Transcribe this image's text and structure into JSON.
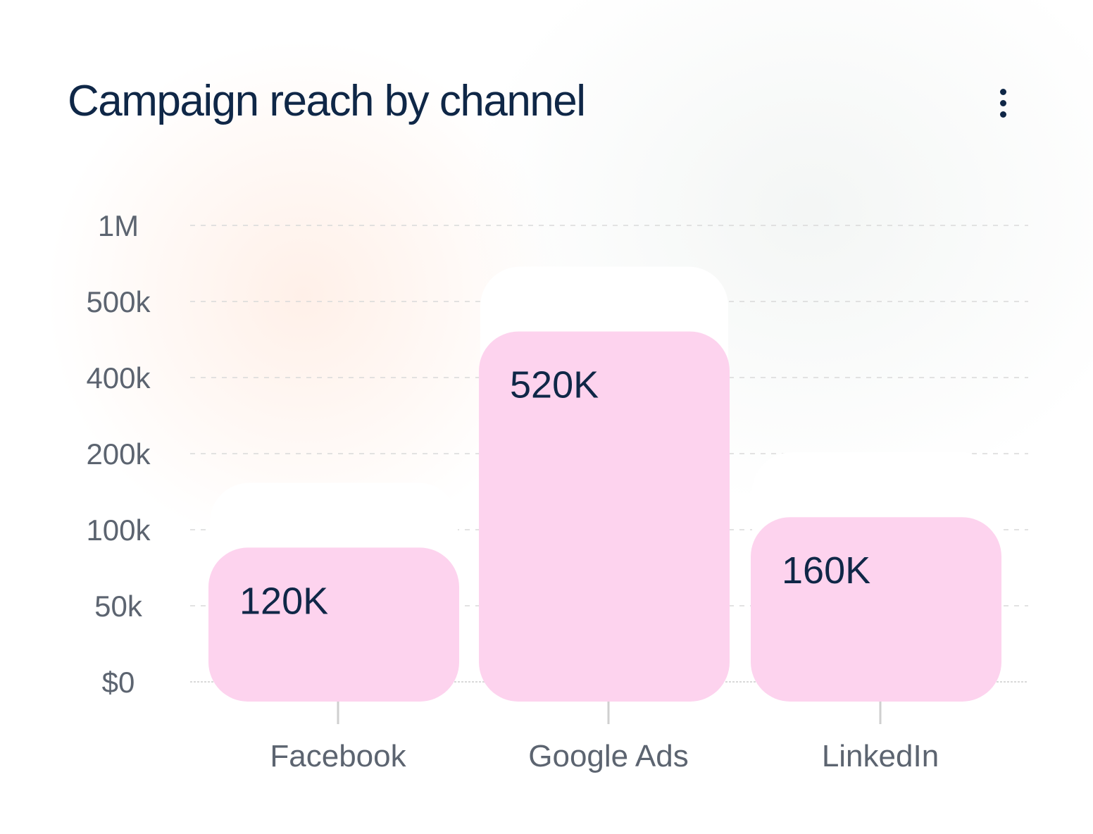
{
  "header": {
    "title": "Campaign reach by channel"
  },
  "icons": {
    "menu": "more-vertical-icon"
  },
  "colors": {
    "bar_fill": "#fdd3ee",
    "bar_ghost": "#ffffff",
    "title": "#0f2747",
    "tick_text": "#5c6470",
    "grid": "#d9d9d9"
  },
  "chart_data": {
    "type": "bar",
    "title": "Campaign reach by channel",
    "categories": [
      "Facebook",
      "Google Ads",
      "LinkedIn"
    ],
    "values": [
      120000,
      520000,
      160000
    ],
    "data_labels": [
      "120K",
      "520K",
      "160K"
    ],
    "y_ticks": [
      0,
      50000,
      100000,
      200000,
      400000,
      500000,
      1000000
    ],
    "y_tick_labels": [
      "$0",
      "50k",
      "100k",
      "200k",
      "400k",
      "500k",
      "1M"
    ],
    "y_scale": "categorical-step (each tick equally spaced)",
    "xlabel": "",
    "ylabel": "",
    "grid": true,
    "legend": "none"
  }
}
